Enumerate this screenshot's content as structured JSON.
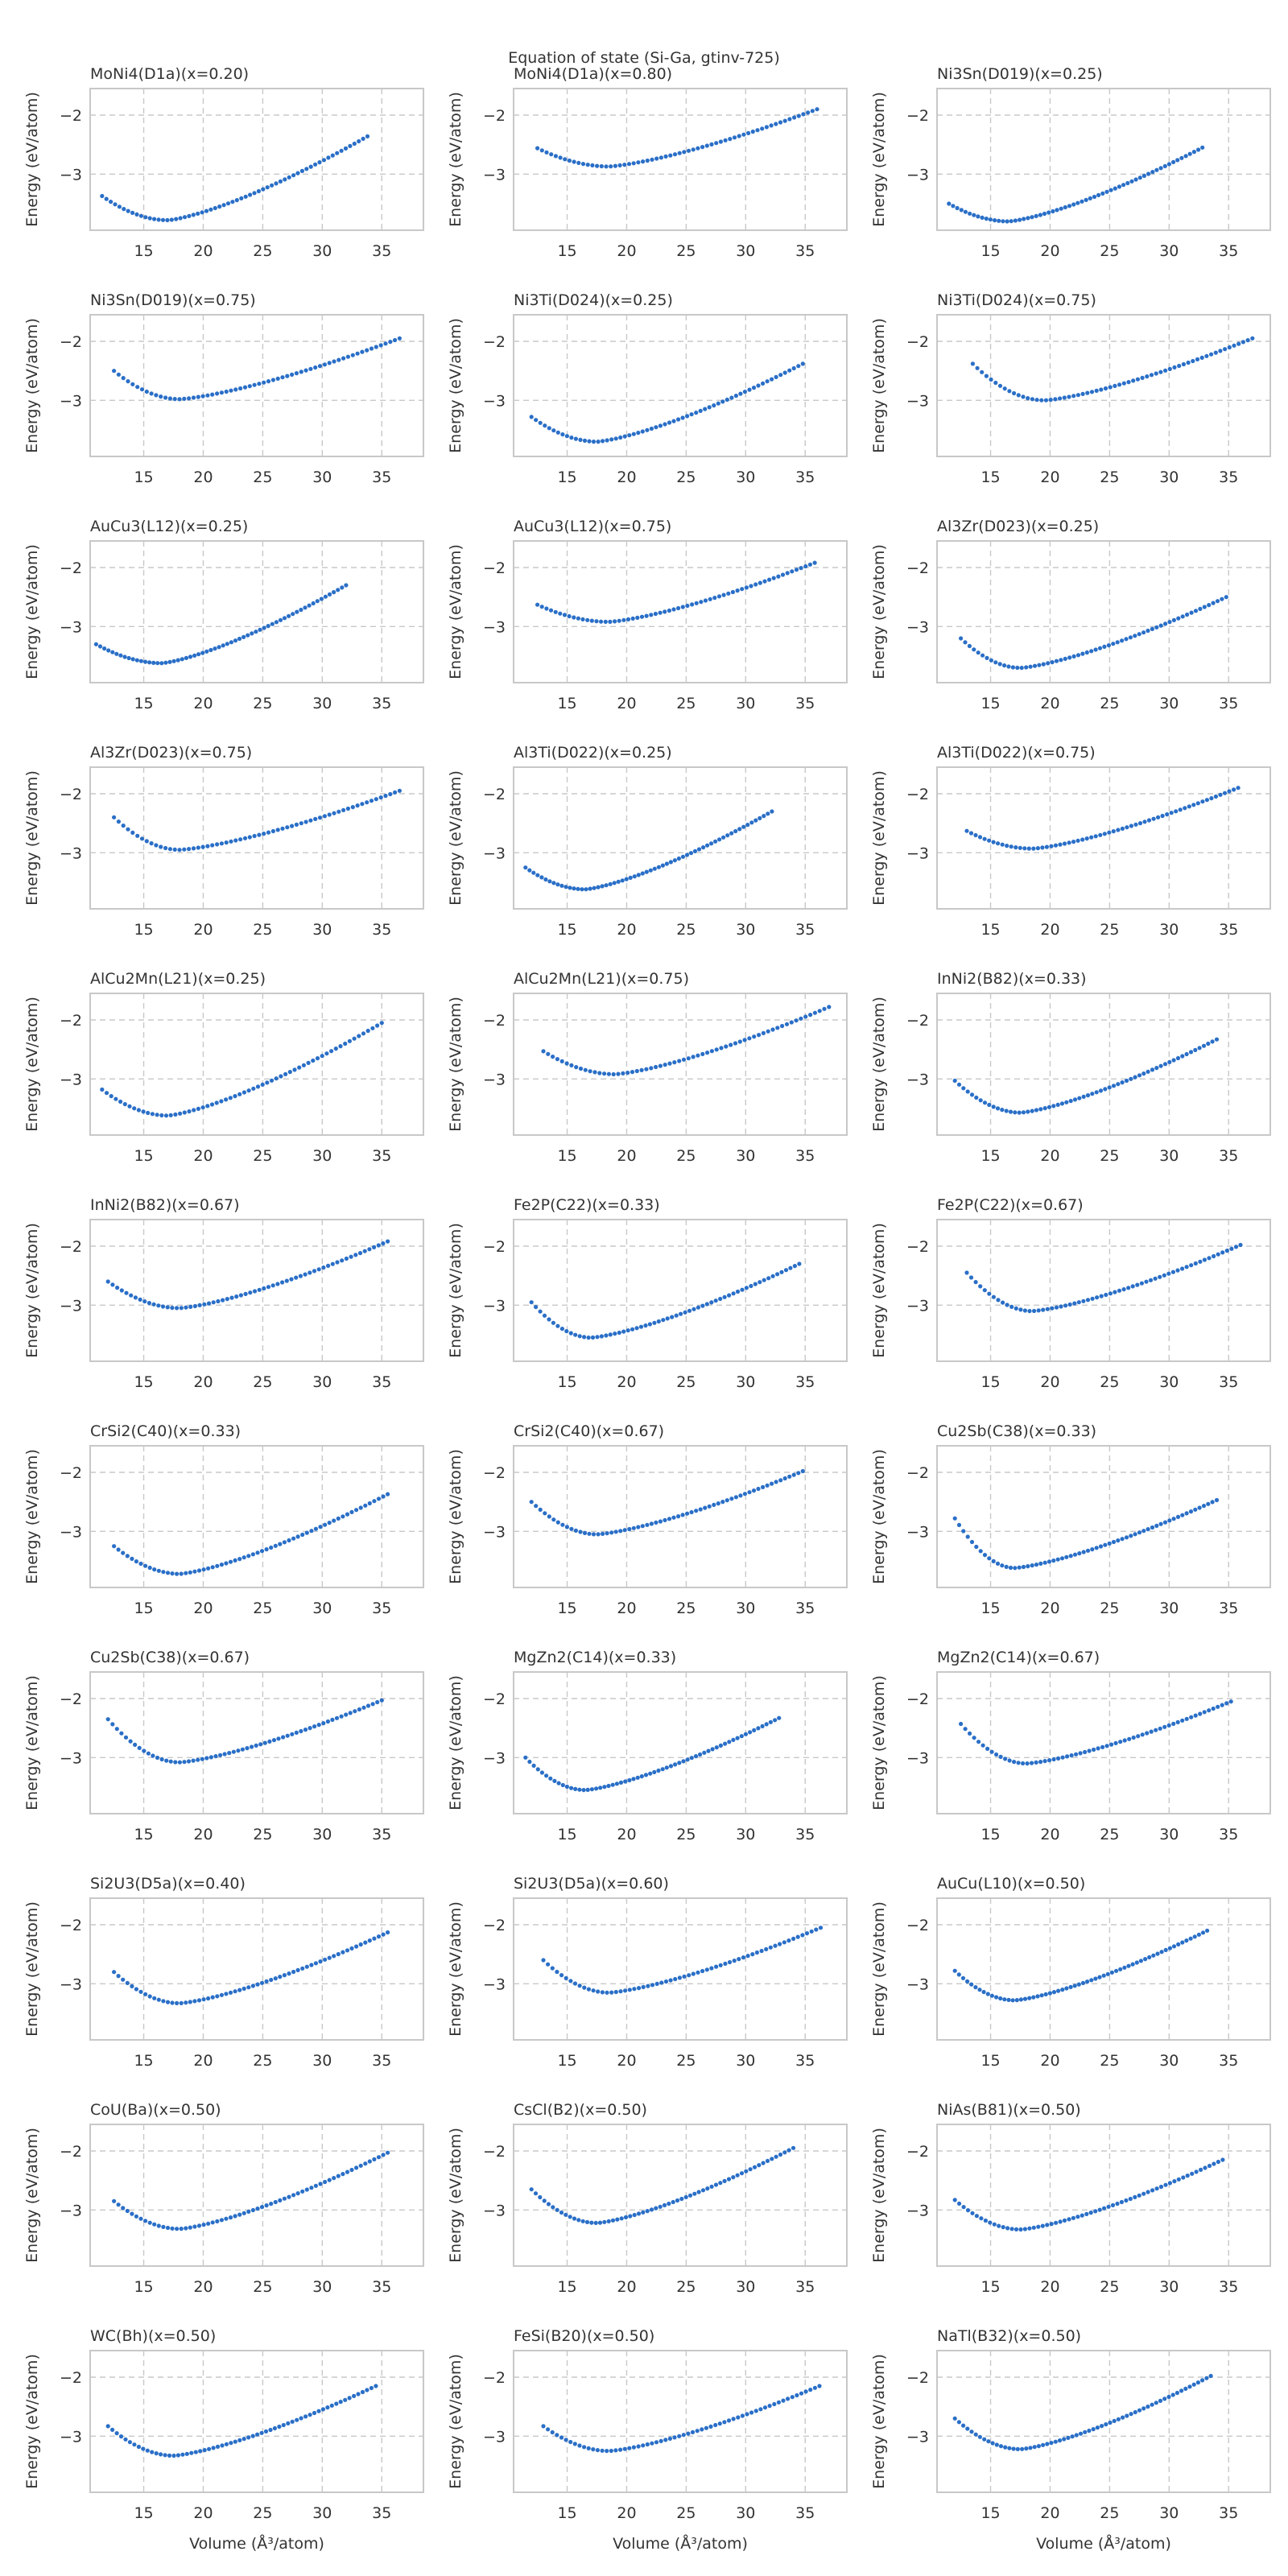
{
  "figure": {
    "title": "Equation of state (Si-Ga, gtinv-725)",
    "xlabel": "Volume (Å³/atom)",
    "ylabel": "Energy (eV/atom)",
    "xticks": [
      15,
      20,
      25,
      30,
      35
    ],
    "yticks": [
      -2,
      -3
    ],
    "xlim": [
      10.5,
      38.5
    ],
    "ylim": [
      -3.95,
      -1.55
    ],
    "colors": {
      "points": "#2a6fc7",
      "grid": "#c8c8c8",
      "frame": "#c8c8c8",
      "text": "#333333"
    }
  },
  "chart_data": [
    {
      "type": "scatter",
      "title": "MoNi4(D1a)(x=0.20)",
      "x_range": [
        11.5,
        33.8
      ],
      "min_volume": 17.0,
      "min_energy": -3.78,
      "start_energy": -3.37,
      "end_energy": -2.36
    },
    {
      "type": "scatter",
      "title": "MoNi4(D1a)(x=0.80)",
      "x_range": [
        12.5,
        36.0
      ],
      "min_volume": 18.5,
      "min_energy": -2.87,
      "start_energy": -2.56,
      "end_energy": -1.9
    },
    {
      "type": "scatter",
      "title": "Ni3Sn(D019)(x=0.25)",
      "x_range": [
        11.5,
        32.8
      ],
      "min_volume": 16.5,
      "min_energy": -3.8,
      "start_energy": -3.5,
      "end_energy": -2.55
    },
    {
      "type": "scatter",
      "title": "Ni3Sn(D019)(x=0.75)",
      "x_range": [
        12.5,
        36.5
      ],
      "min_volume": 18.0,
      "min_energy": -2.98,
      "start_energy": -2.5,
      "end_energy": -1.95
    },
    {
      "type": "scatter",
      "title": "Ni3Ti(D024)(x=0.25)",
      "x_range": [
        12.0,
        34.8
      ],
      "min_volume": 17.5,
      "min_energy": -3.7,
      "start_energy": -3.28,
      "end_energy": -2.38
    },
    {
      "type": "scatter",
      "title": "Ni3Ti(D024)(x=0.75)",
      "x_range": [
        13.5,
        37.0
      ],
      "min_volume": 19.5,
      "min_energy": -3.0,
      "start_energy": -2.38,
      "end_energy": -1.95
    },
    {
      "type": "scatter",
      "title": "AuCu3(L12)(x=0.25)",
      "x_range": [
        11.0,
        32.0
      ],
      "min_volume": 16.5,
      "min_energy": -3.62,
      "start_energy": -3.3,
      "end_energy": -2.3
    },
    {
      "type": "scatter",
      "title": "AuCu3(L12)(x=0.75)",
      "x_range": [
        12.5,
        35.8
      ],
      "min_volume": 18.5,
      "min_energy": -2.92,
      "start_energy": -2.63,
      "end_energy": -1.92
    },
    {
      "type": "scatter",
      "title": "Al3Zr(D023)(x=0.25)",
      "x_range": [
        12.5,
        34.8
      ],
      "min_volume": 17.5,
      "min_energy": -3.7,
      "start_energy": -3.2,
      "end_energy": -2.5
    },
    {
      "type": "scatter",
      "title": "Al3Zr(D023)(x=0.75)",
      "x_range": [
        12.5,
        36.5
      ],
      "min_volume": 18.0,
      "min_energy": -2.95,
      "start_energy": -2.4,
      "end_energy": -1.95
    },
    {
      "type": "scatter",
      "title": "Al3Ti(D022)(x=0.25)",
      "x_range": [
        11.5,
        32.2
      ],
      "min_volume": 16.5,
      "min_energy": -3.62,
      "start_energy": -3.25,
      "end_energy": -2.3
    },
    {
      "type": "scatter",
      "title": "Al3Ti(D022)(x=0.75)",
      "x_range": [
        13.0,
        35.8
      ],
      "min_volume": 18.5,
      "min_energy": -2.93,
      "start_energy": -2.63,
      "end_energy": -1.9
    },
    {
      "type": "scatter",
      "title": "AlCu2Mn(L21)(x=0.25)",
      "x_range": [
        11.5,
        35.0
      ],
      "min_volume": 17.0,
      "min_energy": -3.62,
      "start_energy": -3.18,
      "end_energy": -2.05
    },
    {
      "type": "scatter",
      "title": "AlCu2Mn(L21)(x=0.75)",
      "x_range": [
        13.0,
        37.0
      ],
      "min_volume": 19.0,
      "min_energy": -2.92,
      "start_energy": -2.53,
      "end_energy": -1.78
    },
    {
      "type": "scatter",
      "title": "InNi2(B82)(x=0.33)",
      "x_range": [
        12.0,
        34.0
      ],
      "min_volume": 17.5,
      "min_energy": -3.57,
      "start_energy": -3.03,
      "end_energy": -2.33
    },
    {
      "type": "scatter",
      "title": "InNi2(B82)(x=0.67)",
      "x_range": [
        12.0,
        35.5
      ],
      "min_volume": 18.0,
      "min_energy": -3.05,
      "start_energy": -2.6,
      "end_energy": -1.92
    },
    {
      "type": "scatter",
      "title": "Fe2P(C22)(x=0.33)",
      "x_range": [
        12.0,
        34.5
      ],
      "min_volume": 17.0,
      "min_energy": -3.55,
      "start_energy": -2.95,
      "end_energy": -2.3
    },
    {
      "type": "scatter",
      "title": "Fe2P(C22)(x=0.67)",
      "x_range": [
        13.0,
        36.0
      ],
      "min_volume": 18.5,
      "min_energy": -3.1,
      "start_energy": -2.45,
      "end_energy": -1.98
    },
    {
      "type": "scatter",
      "title": "CrSi2(C40)(x=0.33)",
      "x_range": [
        12.5,
        35.5
      ],
      "min_volume": 18.0,
      "min_energy": -3.72,
      "start_energy": -3.25,
      "end_energy": -2.37
    },
    {
      "type": "scatter",
      "title": "CrSi2(C40)(x=0.67)",
      "x_range": [
        12.0,
        34.8
      ],
      "min_volume": 17.5,
      "min_energy": -3.05,
      "start_energy": -2.5,
      "end_energy": -1.98
    },
    {
      "type": "scatter",
      "title": "Cu2Sb(C38)(x=0.33)",
      "x_range": [
        12.0,
        34.0
      ],
      "min_volume": 17.0,
      "min_energy": -3.62,
      "start_energy": -2.78,
      "end_energy": -2.47
    },
    {
      "type": "scatter",
      "title": "Cu2Sb(C38)(x=0.67)",
      "x_range": [
        12.0,
        35.0
      ],
      "min_volume": 18.0,
      "min_energy": -3.08,
      "start_energy": -2.35,
      "end_energy": -2.03
    },
    {
      "type": "scatter",
      "title": "MgZn2(C14)(x=0.33)",
      "x_range": [
        11.5,
        32.8
      ],
      "min_volume": 16.5,
      "min_energy": -3.55,
      "start_energy": -3.0,
      "end_energy": -2.33
    },
    {
      "type": "scatter",
      "title": "MgZn2(C14)(x=0.67)",
      "x_range": [
        12.5,
        35.2
      ],
      "min_volume": 18.0,
      "min_energy": -3.1,
      "start_energy": -2.43,
      "end_energy": -2.05
    },
    {
      "type": "scatter",
      "title": "Si2U3(D5a)(x=0.40)",
      "x_range": [
        12.5,
        35.5
      ],
      "min_volume": 18.0,
      "min_energy": -3.33,
      "start_energy": -2.8,
      "end_energy": -2.13
    },
    {
      "type": "scatter",
      "title": "Si2U3(D5a)(x=0.60)",
      "x_range": [
        13.0,
        36.3
      ],
      "min_volume": 18.5,
      "min_energy": -3.15,
      "start_energy": -2.6,
      "end_energy": -2.05
    },
    {
      "type": "scatter",
      "title": "AuCu(L10)(x=0.50)",
      "x_range": [
        12.0,
        33.2
      ],
      "min_volume": 17.0,
      "min_energy": -3.28,
      "start_energy": -2.78,
      "end_energy": -2.1
    },
    {
      "type": "scatter",
      "title": "CoU(Ba)(x=0.50)",
      "x_range": [
        12.5,
        35.5
      ],
      "min_volume": 18.0,
      "min_energy": -3.32,
      "start_energy": -2.85,
      "end_energy": -2.03
    },
    {
      "type": "scatter",
      "title": "CsCl(B2)(x=0.50)",
      "x_range": [
        12.0,
        34.0
      ],
      "min_volume": 17.5,
      "min_energy": -3.22,
      "start_energy": -2.65,
      "end_energy": -1.95
    },
    {
      "type": "scatter",
      "title": "NiAs(B81)(x=0.50)",
      "x_range": [
        12.0,
        34.5
      ],
      "min_volume": 17.5,
      "min_energy": -3.33,
      "start_energy": -2.83,
      "end_energy": -2.15
    },
    {
      "type": "scatter",
      "title": "WC(Bh)(x=0.50)",
      "x_range": [
        12.0,
        34.5
      ],
      "min_volume": 17.5,
      "min_energy": -3.33,
      "start_energy": -2.83,
      "end_energy": -2.15
    },
    {
      "type": "scatter",
      "title": "FeSi(B20)(x=0.50)",
      "x_range": [
        13.0,
        36.2
      ],
      "min_volume": 18.5,
      "min_energy": -3.25,
      "start_energy": -2.83,
      "end_energy": -2.15
    },
    {
      "type": "scatter",
      "title": "NaTl(B32)(x=0.50)",
      "x_range": [
        12.0,
        33.5
      ],
      "min_volume": 17.5,
      "min_energy": -3.22,
      "start_energy": -2.7,
      "end_energy": -1.98
    }
  ]
}
